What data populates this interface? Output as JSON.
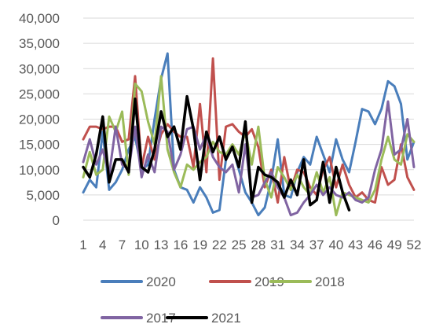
{
  "chart_data": {
    "type": "line",
    "title": "",
    "xlabel": "",
    "ylabel": "",
    "ylim": [
      0,
      40000
    ],
    "y_ticks": [
      "0",
      "5,000",
      "10,000",
      "15,000",
      "20,000",
      "25,000",
      "30,000",
      "35,000",
      "40,000"
    ],
    "x_ticks": [
      "1",
      "4",
      "7",
      "10",
      "13",
      "16",
      "19",
      "22",
      "25",
      "28",
      "31",
      "34",
      "37",
      "40",
      "43",
      "46",
      "49",
      "52"
    ],
    "grid": "horizontal",
    "legend_position": "bottom",
    "series": [
      {
        "name": "2020",
        "color": "#4A7EBB",
        "x": [
          1,
          2,
          3,
          4,
          5,
          6,
          7,
          8,
          9,
          10,
          11,
          12,
          13,
          14,
          15,
          16,
          17,
          18,
          19,
          20,
          21,
          22,
          23,
          24,
          25,
          26,
          27,
          28,
          29,
          30,
          31,
          32,
          33,
          34,
          35,
          36,
          37,
          38,
          39,
          40,
          41,
          42,
          43,
          44,
          45,
          46,
          47,
          48,
          49,
          50,
          51,
          52
        ],
        "values": [
          5500,
          8000,
          6500,
          17500,
          6000,
          7500,
          10000,
          14000,
          16500,
          10000,
          11000,
          20000,
          28000,
          33000,
          10000,
          6500,
          6000,
          3500,
          6500,
          4500,
          1500,
          2000,
          12000,
          14500,
          10000,
          5500,
          3500,
          1000,
          2500,
          8000,
          16000,
          5000,
          4500,
          9500,
          12500,
          11000,
          16500,
          13000,
          9500,
          16000,
          12000,
          9500,
          15500,
          22000,
          21500,
          19000,
          22000,
          27500,
          26500,
          23000,
          12000,
          15500
        ]
      },
      {
        "name": "2019",
        "color": "#C0504D",
        "x": [
          1,
          2,
          3,
          4,
          5,
          6,
          7,
          8,
          9,
          10,
          11,
          12,
          13,
          14,
          15,
          16,
          17,
          18,
          19,
          20,
          21,
          22,
          23,
          24,
          25,
          26,
          27,
          28,
          29,
          30,
          31,
          32,
          33,
          34,
          35,
          36,
          37,
          38,
          39,
          40,
          41,
          42,
          43,
          44,
          45,
          46,
          47,
          48,
          49,
          50,
          51,
          52
        ],
        "values": [
          16000,
          18500,
          18500,
          18000,
          18500,
          18500,
          15500,
          16000,
          28500,
          10500,
          16500,
          12000,
          17000,
          19000,
          17500,
          16500,
          16500,
          10500,
          23000,
          9500,
          32000,
          8000,
          18500,
          19000,
          17500,
          16500,
          18000,
          14500,
          6500,
          10000,
          3500,
          12500,
          6000,
          10000,
          9500,
          6500,
          5000,
          10000,
          12500,
          6500,
          11000,
          7000,
          4500,
          5500,
          4000,
          3500,
          10500,
          7000,
          8000,
          15000,
          8500,
          6000
        ]
      },
      {
        "name": "2018",
        "color": "#9BBB59",
        "x": [
          1,
          2,
          3,
          4,
          5,
          6,
          7,
          8,
          9,
          10,
          11,
          12,
          13,
          14,
          15,
          16,
          17,
          18,
          19,
          20,
          21,
          22,
          23,
          24,
          25,
          26,
          27,
          28,
          29,
          30,
          31,
          32,
          33,
          34,
          35,
          36,
          37,
          38,
          39,
          40,
          41,
          42,
          43,
          44,
          45,
          46,
          47,
          48,
          49,
          50,
          51,
          52
        ],
        "values": [
          8500,
          13500,
          9000,
          10000,
          20500,
          17500,
          21500,
          9000,
          27000,
          25500,
          19500,
          15000,
          28500,
          14000,
          9500,
          6500,
          11000,
          10000,
          11500,
          12500,
          15500,
          13500,
          13000,
          15000,
          13000,
          17500,
          11000,
          18500,
          8000,
          4500,
          10500,
          8500,
          6000,
          9000,
          6500,
          5000,
          9500,
          5500,
          8500,
          1000,
          5500,
          5000,
          4500,
          4000,
          3500,
          6000,
          12000,
          16500,
          12000,
          11000,
          17000,
          15500
        ]
      },
      {
        "name": "2017",
        "color": "#8064A2",
        "x": [
          1,
          2,
          3,
          4,
          5,
          6,
          7,
          8,
          9,
          10,
          11,
          12,
          13,
          14,
          15,
          16,
          17,
          18,
          19,
          20,
          21,
          22,
          23,
          24,
          25,
          26,
          27,
          28,
          29,
          30,
          31,
          32,
          33,
          34,
          35,
          36,
          37,
          38,
          39,
          40,
          41,
          42,
          43,
          44,
          45,
          46,
          47,
          48,
          49,
          50,
          51,
          52
        ],
        "values": [
          11500,
          16000,
          11000,
          14000,
          9000,
          18500,
          11000,
          10000,
          18500,
          8500,
          13000,
          9500,
          18500,
          17500,
          10000,
          13000,
          18000,
          18500,
          14000,
          17000,
          12500,
          10500,
          9500,
          11000,
          5500,
          15000,
          4500,
          5000,
          7500,
          9500,
          6500,
          4500,
          1000,
          1500,
          3500,
          5000,
          7000,
          5000,
          6500,
          5000,
          4500,
          5500,
          4000,
          3500,
          4500,
          10000,
          14000,
          23500,
          13000,
          14000,
          20000,
          10500
        ]
      },
      {
        "name": "2021",
        "color": "#000000",
        "x": [
          1,
          2,
          3,
          4,
          5,
          6,
          7,
          8,
          9,
          10,
          11,
          12,
          13,
          14,
          15,
          16,
          17,
          18,
          19,
          20,
          21,
          22,
          23,
          24,
          25,
          26,
          27,
          28,
          29,
          30,
          31,
          32,
          33,
          34,
          35,
          36,
          37,
          38,
          39,
          40,
          41,
          42
        ],
        "values": [
          10500,
          8500,
          13000,
          20500,
          7500,
          12000,
          12000,
          9500,
          24000,
          10500,
          9500,
          14000,
          21500,
          16500,
          18500,
          14000,
          24500,
          18000,
          8000,
          17500,
          13500,
          16500,
          12000,
          14500,
          10500,
          19500,
          3500,
          10500,
          9000,
          8500,
          7500,
          4500,
          8000,
          5000,
          12000,
          3000,
          4000,
          11500,
          3500,
          10500,
          5500,
          2000
        ]
      }
    ]
  }
}
